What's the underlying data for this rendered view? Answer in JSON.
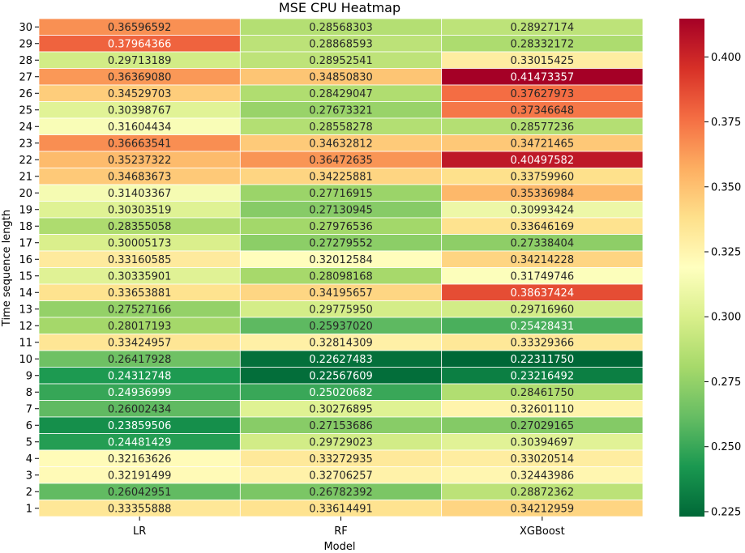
{
  "chart_data": {
    "type": "heatmap",
    "title": "MSE CPU Heatmap",
    "xlabel": "Model",
    "ylabel": "Time sequence length",
    "columns": [
      "LR",
      "RF",
      "XGBoost"
    ],
    "rows": [
      {
        "label": "30",
        "values": [
          "0.36596592",
          "0.28568303",
          "0.28927174"
        ]
      },
      {
        "label": "29",
        "values": [
          "0.37964366",
          "0.28868593",
          "0.28332172"
        ]
      },
      {
        "label": "28",
        "values": [
          "0.29713189",
          "0.28952541",
          "0.33015425"
        ]
      },
      {
        "label": "27",
        "values": [
          "0.36369080",
          "0.34850830",
          "0.41473357"
        ]
      },
      {
        "label": "26",
        "values": [
          "0.34529703",
          "0.28429047",
          "0.37627973"
        ]
      },
      {
        "label": "25",
        "values": [
          "0.30398767",
          "0.27673321",
          "0.37346648"
        ]
      },
      {
        "label": "24",
        "values": [
          "0.31604434",
          "0.28558278",
          "0.28577236"
        ]
      },
      {
        "label": "23",
        "values": [
          "0.36663541",
          "0.34632812",
          "0.34721465"
        ]
      },
      {
        "label": "22",
        "values": [
          "0.35237322",
          "0.36472635",
          "0.40497582"
        ]
      },
      {
        "label": "21",
        "values": [
          "0.34683673",
          "0.34225881",
          "0.33759960"
        ]
      },
      {
        "label": "20",
        "values": [
          "0.31403367",
          "0.27716915",
          "0.35336984"
        ]
      },
      {
        "label": "19",
        "values": [
          "0.30303519",
          "0.27130945",
          "0.30993424"
        ]
      },
      {
        "label": "18",
        "values": [
          "0.28355058",
          "0.27976536",
          "0.33646169"
        ]
      },
      {
        "label": "17",
        "values": [
          "0.30005173",
          "0.27279552",
          "0.27338404"
        ]
      },
      {
        "label": "16",
        "values": [
          "0.33160585",
          "0.32012584",
          "0.34214228"
        ]
      },
      {
        "label": "15",
        "values": [
          "0.30335901",
          "0.28098168",
          "0.31749746"
        ]
      },
      {
        "label": "14",
        "values": [
          "0.33653881",
          "0.34195657",
          "0.38637424"
        ]
      },
      {
        "label": "13",
        "values": [
          "0.27527166",
          "0.29775950",
          "0.29716960"
        ]
      },
      {
        "label": "12",
        "values": [
          "0.28017193",
          "0.25937020",
          "0.25428431"
        ]
      },
      {
        "label": "11",
        "values": [
          "0.33424957",
          "0.32814309",
          "0.33329366"
        ]
      },
      {
        "label": "10",
        "values": [
          "0.26417928",
          "0.22627483",
          "0.22311750"
        ]
      },
      {
        "label": "9",
        "values": [
          "0.24312748",
          "0.22567609",
          "0.23216492"
        ]
      },
      {
        "label": "8",
        "values": [
          "0.24936999",
          "0.25020682",
          "0.28461750"
        ]
      },
      {
        "label": "7",
        "values": [
          "0.26002434",
          "0.30276895",
          "0.32601110"
        ]
      },
      {
        "label": "6",
        "values": [
          "0.23859506",
          "0.27153686",
          "0.27029165"
        ]
      },
      {
        "label": "5",
        "values": [
          "0.24481429",
          "0.29729023",
          "0.30394697"
        ]
      },
      {
        "label": "4",
        "values": [
          "0.32163626",
          "0.33272935",
          "0.33020514"
        ]
      },
      {
        "label": "3",
        "values": [
          "0.32191499",
          "0.32706257",
          "0.32443986"
        ]
      },
      {
        "label": "2",
        "values": [
          "0.26042951",
          "0.26782392",
          "0.28872362"
        ]
      },
      {
        "label": "1",
        "values": [
          "0.33355888",
          "0.33614491",
          "0.34212959"
        ]
      }
    ],
    "colormap": "RdYlGn_r",
    "vmin": 0.2231175,
    "vmax": 0.41473357,
    "colorbar_ticks": [
      "0.225",
      "0.250",
      "0.275",
      "0.300",
      "0.325",
      "0.350",
      "0.375",
      "0.400"
    ]
  }
}
